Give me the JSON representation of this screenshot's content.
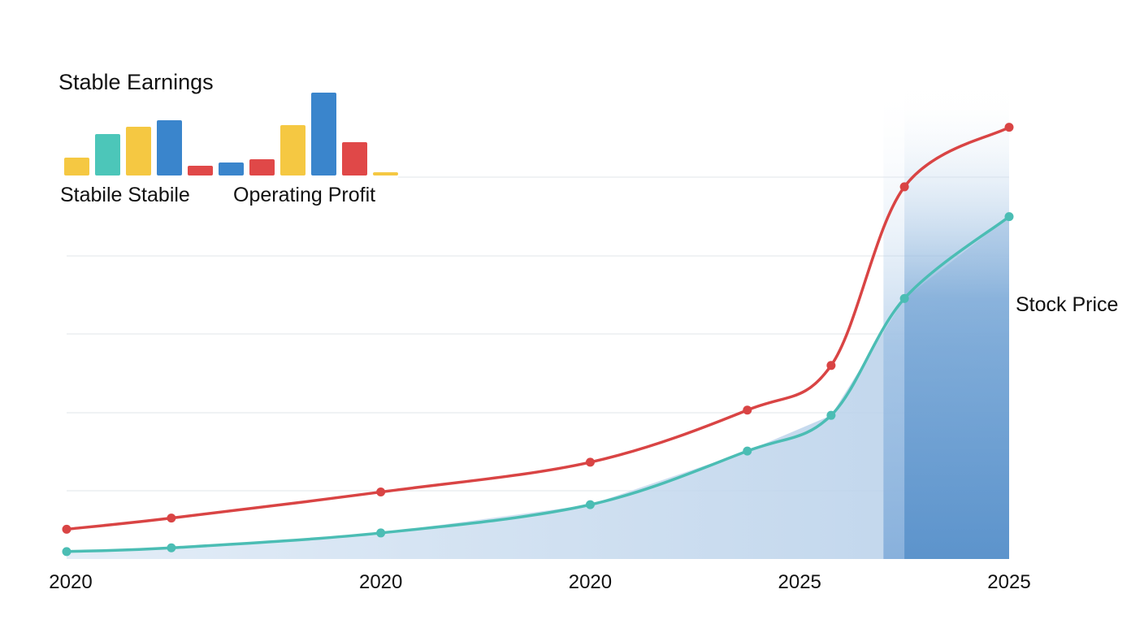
{
  "chart_data": {
    "type": "line",
    "title": "",
    "xlabel": "",
    "ylabel": "",
    "grid": true,
    "x_tick_labels": [
      "2020",
      "2020",
      "2020",
      "2025",
      "2025"
    ],
    "x_points": [
      0,
      1,
      3,
      5,
      6.5,
      7.3,
      8.0,
      9.0
    ],
    "series": [
      {
        "name": "",
        "color": "#d94444",
        "values": [
          4,
          5.5,
          9,
          13,
          20,
          26,
          50,
          58
        ]
      },
      {
        "name": "",
        "color": "#4bbdb4",
        "values": [
          1,
          1.5,
          3.5,
          7.3,
          14.5,
          19.3,
          35,
          46
        ]
      }
    ],
    "highlight_bands": [
      {
        "x_from": 7.8,
        "x_to": 9.0,
        "color": "#8fb7e0"
      },
      {
        "x_from": 8.0,
        "x_to": 9.0,
        "color": "#5d95cc"
      }
    ],
    "series_label": "Stock Price",
    "inset": {
      "type": "bar",
      "title": "Stable Earnings",
      "labels": [
        "Stabile Stabile",
        "Operating Profit"
      ],
      "bars": [
        {
          "value": 22,
          "color": "#f5c842"
        },
        {
          "value": 51,
          "color": "#4cc6b9"
        },
        {
          "value": 60,
          "color": "#f5c842"
        },
        {
          "value": 68,
          "color": "#3a85cc"
        },
        {
          "value": 12,
          "color": "#e04848"
        },
        {
          "value": 16,
          "color": "#3a85cc"
        },
        {
          "value": 20,
          "color": "#e04848"
        },
        {
          "value": 62,
          "color": "#f5c842"
        },
        {
          "value": 102,
          "color": "#3a85cc"
        },
        {
          "value": 41,
          "color": "#e04848"
        },
        {
          "value": 4,
          "color": "#f5c842"
        }
      ]
    }
  }
}
